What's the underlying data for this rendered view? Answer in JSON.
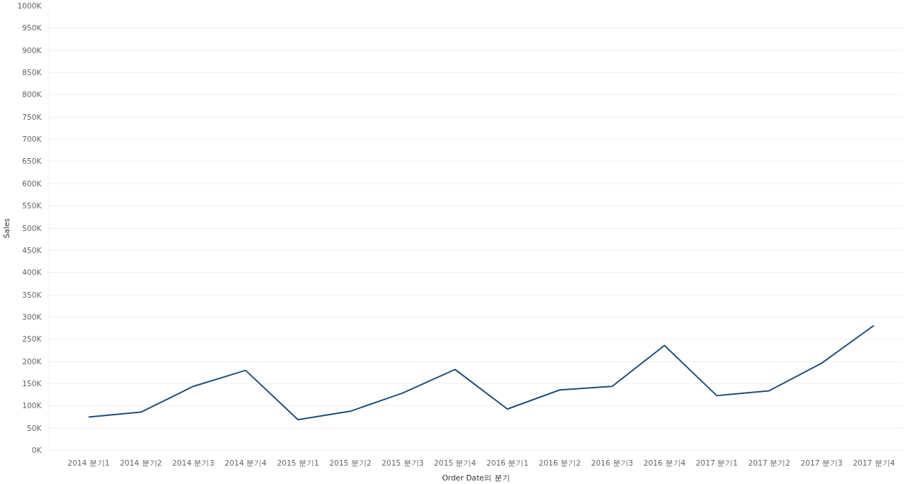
{
  "chart_data": {
    "type": "line",
    "xlabel": "Order Date의 분기",
    "ylabel": "Sales",
    "categories": [
      "2014 분기1",
      "2014 분기2",
      "2014 분기3",
      "2014 분기4",
      "2015 분기1",
      "2015 분기2",
      "2015 분기3",
      "2015 분기4",
      "2016 분기1",
      "2016 분기2",
      "2016 분기3",
      "2016 분기4",
      "2017 분기1",
      "2017 분기2",
      "2017 분기3",
      "2017 분기4"
    ],
    "series": [
      {
        "color": "#1f4e79",
        "values": [
          75000,
          86000,
          144000,
          180000,
          69000,
          88000,
          129000,
          182000,
          93000,
          136000,
          144000,
          236000,
          123000,
          134000,
          196000,
          281000
        ]
      }
    ],
    "ylim": [
      0,
      1000000
    ],
    "yticks": [
      {
        "value": 0,
        "label": "0K"
      },
      {
        "value": 50000,
        "label": "50K"
      },
      {
        "value": 100000,
        "label": "100K"
      },
      {
        "value": 150000,
        "label": "150K"
      },
      {
        "value": 200000,
        "label": "200K"
      },
      {
        "value": 250000,
        "label": "250K"
      },
      {
        "value": 300000,
        "label": "300K"
      },
      {
        "value": 350000,
        "label": "350K"
      },
      {
        "value": 400000,
        "label": "400K"
      },
      {
        "value": 450000,
        "label": "450K"
      },
      {
        "value": 500000,
        "label": "500K"
      },
      {
        "value": 550000,
        "label": "550K"
      },
      {
        "value": 600000,
        "label": "600K"
      },
      {
        "value": 650000,
        "label": "650K"
      },
      {
        "value": 700000,
        "label": "700K"
      },
      {
        "value": 750000,
        "label": "750K"
      },
      {
        "value": 800000,
        "label": "800K"
      },
      {
        "value": 850000,
        "label": "850K"
      },
      {
        "value": 900000,
        "label": "900K"
      },
      {
        "value": 950000,
        "label": "950K"
      },
      {
        "value": 1000000,
        "label": "1000K"
      }
    ],
    "grid": "y",
    "line_style": "solid"
  }
}
